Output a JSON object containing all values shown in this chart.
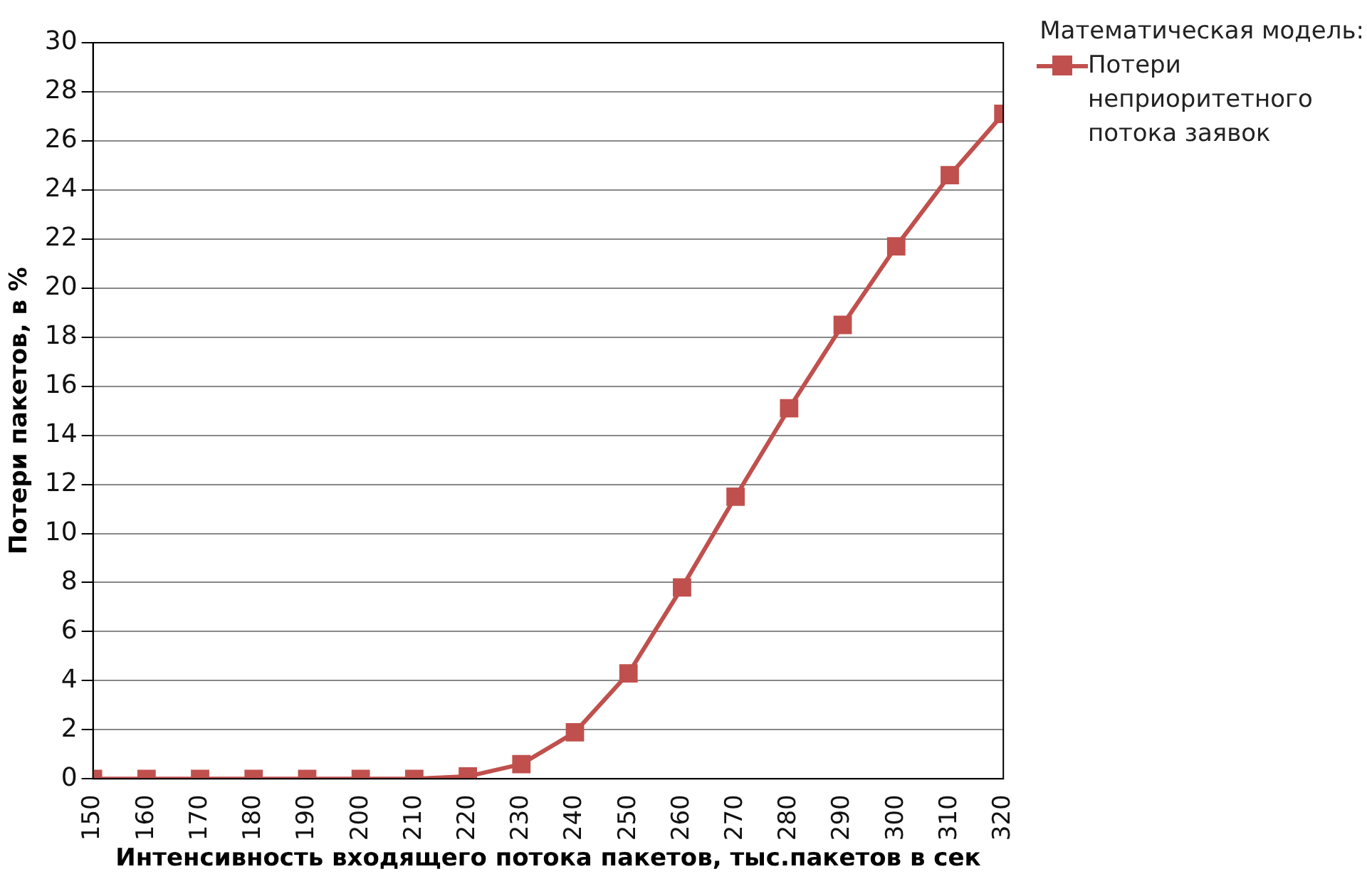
{
  "chart_data": {
    "type": "line",
    "xlabel": "Интенсивность входящего потока пакетов, тыс.пакетов в сек",
    "ylabel": "Потери пакетов, в %",
    "legend_title": "Математическая модель:",
    "x": [
      150,
      160,
      170,
      180,
      190,
      200,
      210,
      220,
      230,
      240,
      250,
      260,
      270,
      280,
      290,
      300,
      310,
      320
    ],
    "series": [
      {
        "name": "Потери неприоритетного потока заявок",
        "color": "#c0504d",
        "values": [
          0,
          0,
          0,
          0,
          0,
          0,
          0,
          0.1,
          0.6,
          1.9,
          4.3,
          7.8,
          11.5,
          15.1,
          18.5,
          21.7,
          24.6,
          27.1
        ]
      }
    ],
    "xlim": [
      150,
      320
    ],
    "xticks": [
      150,
      160,
      170,
      180,
      190,
      200,
      210,
      220,
      230,
      240,
      250,
      260,
      270,
      280,
      290,
      300,
      310,
      320
    ],
    "ylim": [
      0,
      30
    ],
    "yticks": [
      0,
      2,
      4,
      6,
      8,
      10,
      12,
      14,
      16,
      18,
      20,
      22,
      24,
      26,
      28,
      30
    ],
    "grid": "y",
    "legend": "top right",
    "marker": "square",
    "line_style": "solid"
  }
}
